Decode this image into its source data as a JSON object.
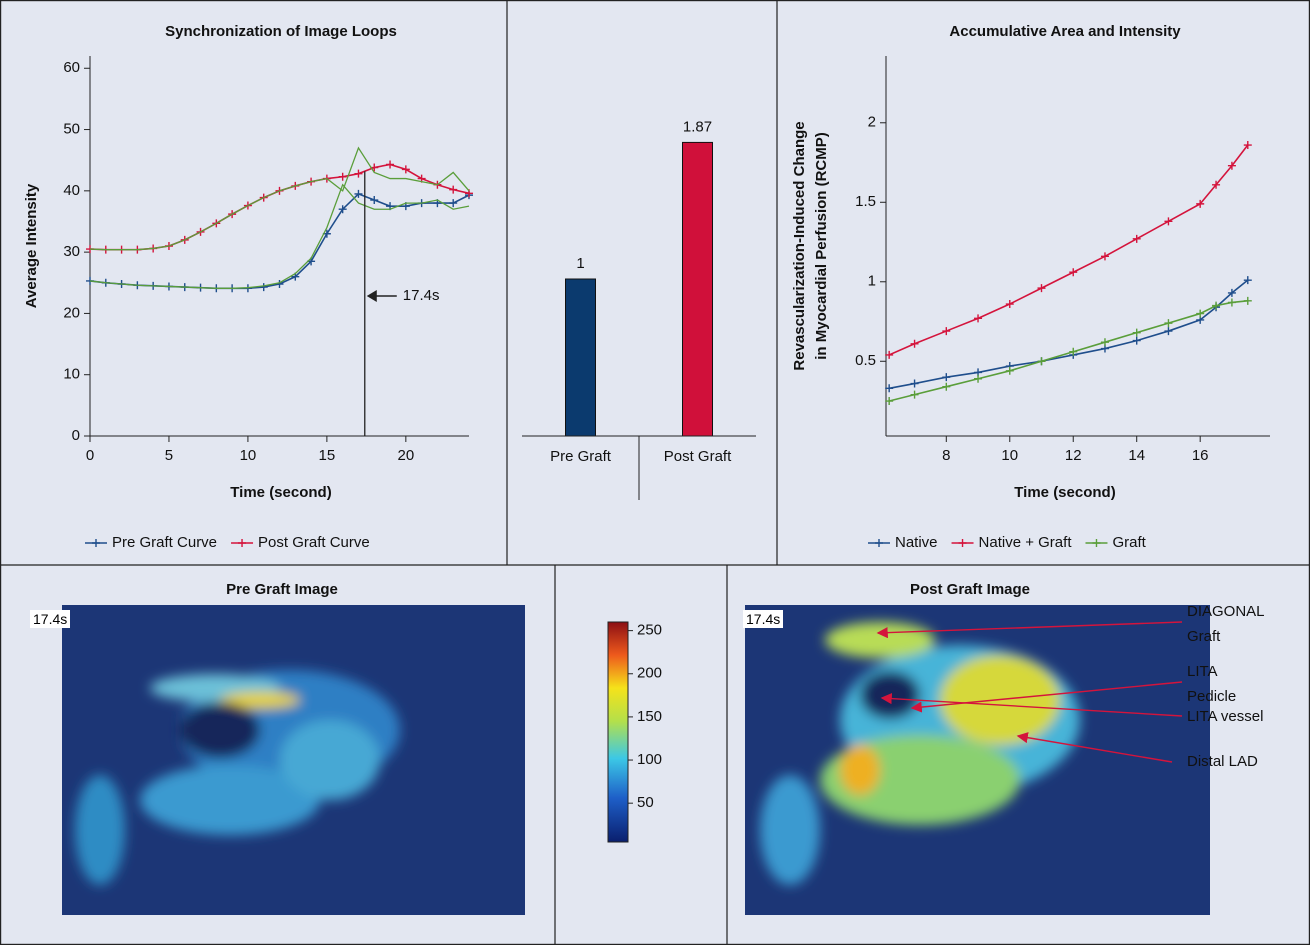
{
  "chart_data": [
    {
      "type": "line",
      "title": "Synchronization of Image Loops",
      "xlabel": "Time (second)",
      "ylabel": "Average Intensity",
      "x": [
        0,
        1,
        2,
        3,
        4,
        5,
        6,
        7,
        8,
        9,
        10,
        11,
        12,
        13,
        14,
        15,
        16,
        17,
        18,
        19,
        20,
        21,
        22,
        23,
        24
      ],
      "xlim": [
        0,
        24
      ],
      "ylim": [
        0,
        62
      ],
      "xticks": [
        0,
        5,
        10,
        15,
        20
      ],
      "yticks": [
        0,
        10,
        20,
        30,
        40,
        50,
        60
      ],
      "series": [
        {
          "name": "Pre Graft Curve",
          "color": "#1f4e8c",
          "marker": "+",
          "values": [
            25.3,
            25,
            24.8,
            24.6,
            24.5,
            24.4,
            24.3,
            24.2,
            24.1,
            24.1,
            24.1,
            24.3,
            24.8,
            26,
            28.5,
            33,
            37,
            39.5,
            38.5,
            37.5,
            37.5,
            38,
            38,
            38,
            39.3
          ]
        },
        {
          "name": "Post Graft Curve",
          "color": "#d4143c",
          "marker": "+",
          "values": [
            30.5,
            30.4,
            30.4,
            30.4,
            30.6,
            31,
            32,
            33.3,
            34.7,
            36.2,
            37.6,
            38.9,
            40,
            40.8,
            41.5,
            42,
            42.3,
            42.8,
            43.8,
            44.3,
            43.5,
            42,
            41,
            40.2,
            39.6
          ]
        },
        {
          "color": "#5a9e3a",
          "values": [
            25.3,
            25,
            24.8,
            24.6,
            24.5,
            24.4,
            24.3,
            24.2,
            24.1,
            24.1,
            24.2,
            24.5,
            25,
            26.5,
            29,
            34,
            41,
            38,
            37,
            37,
            38,
            38,
            38.5,
            37,
            37.5
          ]
        },
        {
          "color": "#5a9e3a",
          "values": [
            30.5,
            30.4,
            30.4,
            30.4,
            30.6,
            31,
            32,
            33.3,
            34.7,
            36.2,
            37.6,
            38.9,
            40,
            40.8,
            41.5,
            42,
            40,
            47,
            43,
            42,
            42,
            41.5,
            41,
            43,
            40
          ]
        }
      ],
      "annotations": [
        {
          "x": 17.4,
          "label": "17.4s"
        }
      ]
    },
    {
      "type": "bar",
      "categories": [
        "Pre Graft",
        "Post Graft"
      ],
      "values": [
        1,
        1.87
      ],
      "colors": [
        "#0b3a6e",
        "#d0103a"
      ],
      "ylim": [
        0,
        2.5
      ]
    },
    {
      "type": "line",
      "title": "Accumulative Area and Intensity",
      "xlabel": "Time (second)",
      "ylabel": [
        "Revascularization-Induced Change",
        "in Myocardial Perfusion (RCMP)"
      ],
      "x": [
        6.2,
        7,
        8,
        9,
        10,
        11,
        12,
        13,
        14,
        15,
        16,
        16.5,
        17,
        17.5
      ],
      "xlim": [
        6.1,
        18.2
      ],
      "ylim": [
        0.03,
        2.42
      ],
      "xticks": [
        8,
        10,
        12,
        14,
        16
      ],
      "yticks": [
        0.5,
        1,
        1.5,
        2
      ],
      "series": [
        {
          "name": "Native",
          "color": "#1f4e8c",
          "marker": "+",
          "values": [
            0.33,
            0.36,
            0.4,
            0.43,
            0.47,
            0.5,
            0.54,
            0.58,
            0.63,
            0.69,
            0.76,
            0.84,
            0.93,
            1.01
          ]
        },
        {
          "name": "Native + Graft",
          "color": "#d4143c",
          "marker": "+",
          "values": [
            0.54,
            0.61,
            0.69,
            0.77,
            0.86,
            0.96,
            1.06,
            1.16,
            1.27,
            1.38,
            1.49,
            1.61,
            1.73,
            1.86
          ]
        },
        {
          "name": "Graft",
          "color": "#5a9e3a",
          "marker": "+",
          "values": [
            0.25,
            0.29,
            0.34,
            0.39,
            0.44,
            0.5,
            0.56,
            0.62,
            0.68,
            0.74,
            0.8,
            0.85,
            0.87,
            0.88
          ]
        }
      ]
    },
    {
      "type": "colorbar",
      "clim": [
        5,
        260
      ],
      "ticks": [
        50,
        100,
        150,
        200,
        250
      ]
    }
  ],
  "images": {
    "pre": {
      "title": "Pre Graft Image",
      "time": "17.4s"
    },
    "post": {
      "title": "Post Graft Image",
      "time": "17.4s",
      "annotations": [
        "DIAGONAL Graft",
        "LITA Pedicle",
        "LITA vessel",
        "Distal LAD"
      ]
    }
  }
}
